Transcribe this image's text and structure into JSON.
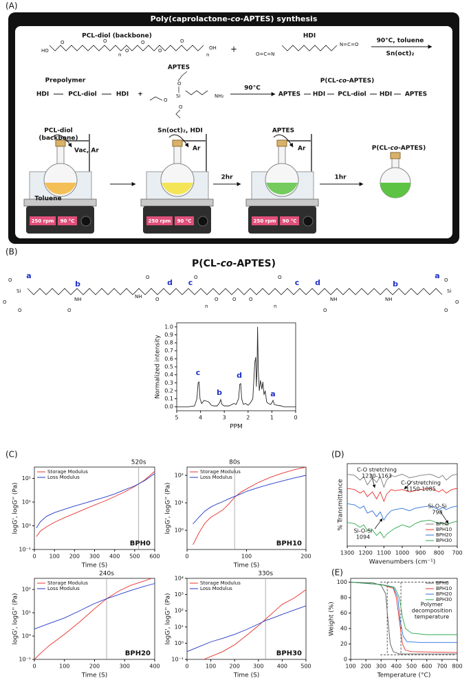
{
  "panel_a": {
    "label": "(A)",
    "title": [
      "Poly(caprolactone-",
      "co",
      "-APTES) synthesis"
    ],
    "pcl_diol": "PCL-diol (backbone)",
    "pcl_atoms": [
      "HO",
      "O",
      "O",
      "n",
      "O",
      "O",
      "O",
      "O",
      "n",
      "OH"
    ],
    "plus": "+",
    "hdi": "HDI",
    "hdi_ends": [
      "O=C=N",
      "N=C=O"
    ],
    "cond1": "90°C, toluene",
    "cat1": "Sn(oct)₂",
    "prepolymer": "Prepolymer",
    "prepoly_formula": [
      "HDI",
      "PCL-diol",
      "HDI",
      "+"
    ],
    "aptes": "APTES",
    "aptes_atoms": [
      "O",
      "Si",
      "O",
      "O",
      "NH₂"
    ],
    "cond2": "90°C",
    "product": [
      "P(CL-",
      "co",
      "-APTES)"
    ],
    "product_formula": [
      "APTES",
      "HDI",
      "PCL-diol",
      "HDI",
      "APTES"
    ],
    "steps": {
      "pcl_label": [
        "PCL-diol",
        "(backbone)"
      ],
      "vac": "Vac, Ar",
      "toluene": "Toluene",
      "reagents": "Sn(oct)₂, HDI",
      "ar": "Ar",
      "t1": "2hr",
      "aptes": "APTES",
      "t2": "1hr",
      "final": [
        "P(CL-",
        "co",
        "-APTES)"
      ]
    },
    "display": {
      "rpm": "250 rpm",
      "temp": "90 °C"
    }
  },
  "panel_b": {
    "label": "(B)",
    "title": [
      "P(CL-",
      "co",
      "-APTES)"
    ],
    "letters": [
      "a",
      "b",
      "d",
      "c",
      "c",
      "d",
      "b",
      "a"
    ],
    "atoms": [
      "Si",
      "O",
      "O",
      "O",
      "NH",
      "O",
      "NH",
      "O",
      "O",
      "O",
      "n",
      "O",
      "O",
      "O",
      "n",
      "O",
      "NH",
      "O",
      "NH",
      "Si",
      "O",
      "O",
      "O"
    ]
  },
  "panel_labels": {
    "c": "(C)",
    "d": "(D)",
    "e": "(E)"
  },
  "chart_data": [
    {
      "type": "line",
      "xlabel": "PPM",
      "ylabel": "Normalized intensity",
      "xlim": [
        5,
        0
      ],
      "ylim": [
        -0.05,
        1.05
      ],
      "xticks": [
        5,
        4,
        3,
        2,
        1,
        0
      ],
      "yticks": [
        {
          "value": 0,
          "label": "0.0"
        },
        0.1,
        0.2,
        0.3,
        0.4,
        0.5,
        0.6,
        0.7,
        0.8,
        0.9,
        {
          "value": 1,
          "label": "1.0"
        }
      ],
      "color": "#222222",
      "annotations": [
        "c",
        "b",
        "d",
        "a"
      ],
      "x": [
        5,
        4.5,
        4.25,
        4.15,
        4.1,
        4.06,
        4.02,
        3.95,
        3.85,
        3.75,
        3.65,
        3.55,
        3.45,
        3.3,
        3.2,
        3.15,
        3.1,
        3.0,
        2.8,
        2.6,
        2.5,
        2.4,
        2.35,
        2.31,
        2.27,
        2.2,
        2.1,
        2.0,
        1.9,
        1.8,
        1.72,
        1.68,
        1.65,
        1.62,
        1.6,
        1.57,
        1.53,
        1.48,
        1.42,
        1.38,
        1.33,
        1.28,
        1.22,
        1.15,
        1.05,
        1.0,
        0.95,
        0.9,
        0.8,
        0.6,
        0.5,
        0.3,
        0
      ],
      "series": [
        {
          "values": [
            0,
            0,
            0.01,
            0.1,
            0.3,
            0.31,
            0.1,
            0.04,
            0.08,
            0.07,
            0.06,
            0.02,
            0.01,
            0.01,
            0.05,
            0.09,
            0.03,
            0.01,
            0.01,
            0.04,
            0.03,
            0.1,
            0.28,
            0.29,
            0.1,
            0.03,
            0.04,
            0.02,
            0.05,
            0.1,
            0.55,
            0.62,
            0.25,
            0.5,
            1.0,
            0.45,
            0.2,
            0.33,
            0.22,
            0.31,
            0.15,
            0.2,
            0.06,
            0.04,
            0.03,
            0.05,
            0.08,
            0.03,
            0.02,
            0.01,
            0,
            0,
            0
          ]
        }
      ]
    },
    {
      "type": "line",
      "title": "520s",
      "label": "BPH0",
      "xlabel": "Time (S)",
      "ylabel": "logG', logG'' (Pa)",
      "yscale": "log",
      "xlim": [
        0,
        600
      ],
      "ylim": [
        0.1,
        300
      ],
      "xticks": [
        0,
        100,
        200,
        300,
        400,
        500,
        600
      ],
      "yticks": [
        {
          "value": 0.1,
          "label": "10⁻¹"
        },
        {
          "value": 1,
          "label": "10⁰"
        },
        {
          "value": 10,
          "label": "10¹"
        },
        {
          "value": 100,
          "label": "10²"
        }
      ],
      "vline": 520,
      "legend": "upper left",
      "series": [
        {
          "name": "Storage Modulus",
          "color": "#e8302a",
          "x": [
            10,
            30,
            60,
            100,
            150,
            200,
            250,
            300,
            350,
            400,
            450,
            500,
            550,
            600
          ],
          "values": [
            0.35,
            0.6,
            0.9,
            1.4,
            2.2,
            3.3,
            5,
            7.5,
            11,
            17,
            27,
            45,
            85,
            200
          ]
        },
        {
          "name": "Loss Modulus",
          "color": "#2236c8",
          "x": [
            10,
            30,
            60,
            100,
            150,
            200,
            250,
            300,
            350,
            400,
            450,
            500,
            550,
            600
          ],
          "values": [
            0.8,
            1.5,
            2.5,
            3.6,
            5,
            6.8,
            9,
            12,
            16,
            22,
            33,
            48,
            80,
            160
          ]
        }
      ]
    },
    {
      "type": "line",
      "title": "80s",
      "label": "BPH10",
      "xlabel": "Time (S)",
      "ylabel": "logG', logG'' (Pa)",
      "yscale": "log",
      "xlim": [
        0,
        200
      ],
      "ylim": [
        0.2,
        200
      ],
      "xticks": [
        0,
        100,
        200
      ],
      "yticks": [
        {
          "value": 1,
          "label": "10⁰"
        },
        {
          "value": 10,
          "label": "10¹"
        },
        {
          "value": 100,
          "label": "10²"
        }
      ],
      "vline": 80,
      "legend": "upper left",
      "series": [
        {
          "name": "Storage Modulus",
          "color": "#e8302a",
          "x": [
            10,
            20,
            30,
            40,
            50,
            60,
            70,
            80,
            90,
            100,
            120,
            140,
            160,
            180,
            200
          ],
          "values": [
            0.3,
            0.8,
            1.8,
            3,
            4,
            5.5,
            9,
            16,
            24,
            32,
            55,
            85,
            120,
            160,
            200
          ]
        },
        {
          "name": "Loss Modulus",
          "color": "#2236c8",
          "x": [
            10,
            20,
            30,
            40,
            50,
            60,
            70,
            80,
            90,
            100,
            120,
            140,
            160,
            180,
            200
          ],
          "values": [
            1.7,
            3,
            5,
            7,
            9,
            11,
            14,
            17,
            21,
            26,
            36,
            48,
            62,
            80,
            100
          ]
        }
      ]
    },
    {
      "type": "line",
      "title": "240s",
      "label": "BPH20",
      "xlabel": "Time (S)",
      "ylabel": "logG', logG'' (Pa)",
      "yscale": "log",
      "xlim": [
        0,
        400
      ],
      "ylim": [
        0.1,
        300
      ],
      "xticks": [
        0,
        100,
        200,
        300,
        400
      ],
      "yticks": [
        {
          "value": 0.1,
          "label": "10⁻¹"
        },
        {
          "value": 1,
          "label": "10⁰"
        },
        {
          "value": 10,
          "label": "10¹"
        },
        {
          "value": 100,
          "label": "10²"
        }
      ],
      "vline": 240,
      "legend": "upper left",
      "series": [
        {
          "name": "Storage Modulus",
          "color": "#e8302a",
          "x": [
            0,
            20,
            50,
            100,
            150,
            200,
            240,
            280,
            320,
            360,
            390
          ],
          "values": [
            0.1,
            0.18,
            0.4,
            1.2,
            4,
            15,
            40,
            85,
            150,
            220,
            300
          ]
        },
        {
          "name": "Loss Modulus",
          "color": "#2236c8",
          "x": [
            0,
            50,
            100,
            150,
            200,
            240,
            280,
            320,
            360,
            400
          ],
          "values": [
            2,
            3.5,
            6,
            12,
            25,
            40,
            60,
            90,
            130,
            180
          ]
        }
      ]
    },
    {
      "type": "line",
      "title": "330s",
      "label": "BPH30",
      "xlabel": "Time (S)",
      "ylabel": "logG', logG'' (Pa)",
      "yscale": "log",
      "xlim": [
        0,
        500
      ],
      "ylim": [
        0.1,
        10000
      ],
      "xticks": [
        0,
        100,
        200,
        300,
        400,
        500
      ],
      "yticks": [
        {
          "value": 0.1,
          "label": "10⁻¹"
        },
        {
          "value": 1,
          "label": "10⁰"
        },
        {
          "value": 10,
          "label": "10¹"
        },
        {
          "value": 100,
          "label": "10²"
        },
        {
          "value": 1000,
          "label": "10³"
        },
        {
          "value": 10000,
          "label": "10⁴"
        }
      ],
      "vline": 330,
      "legend": "upper left",
      "series": [
        {
          "name": "Storage Modulus",
          "color": "#e8302a",
          "x": [
            70,
            100,
            150,
            200,
            250,
            300,
            330,
            370,
            400,
            450,
            500
          ],
          "values": [
            0.1,
            0.15,
            0.3,
            0.8,
            3,
            12,
            30,
            100,
            250,
            600,
            2000
          ]
        },
        {
          "name": "Loss Modulus",
          "color": "#2236c8",
          "x": [
            0,
            50,
            100,
            150,
            200,
            250,
            300,
            330,
            370,
            400,
            450,
            500
          ],
          "values": [
            0.3,
            0.6,
            1.2,
            2,
            3.5,
            7,
            15,
            25,
            40,
            60,
            110,
            200
          ]
        }
      ]
    },
    {
      "type": "line",
      "xlabel": "Wavenumbers (cm⁻¹)",
      "ylabel": "% Transmittance",
      "xlim": [
        1300,
        700
      ],
      "ylim": [
        0.5,
        4
      ],
      "xticks": [
        1300,
        1200,
        1100,
        1000,
        900,
        800,
        700
      ],
      "legend": "lower right",
      "annotations": [
        {
          "lines": [
            "C-O stretching",
            "1210-1163"
          ]
        },
        {
          "lines": [
            "C-O stretching",
            "1150-1085"
          ]
        },
        {
          "lines": [
            "Si-O-Si",
            "798"
          ]
        },
        {
          "lines": [
            "Si-O-Si",
            "1094"
          ]
        }
      ],
      "x": [
        1300,
        1260,
        1230,
        1210,
        1190,
        1163,
        1140,
        1120,
        1100,
        1085,
        1060,
        1040,
        1000,
        960,
        930,
        900,
        850,
        830,
        800,
        780,
        760,
        730,
        700
      ],
      "series": [
        {
          "name": "BPH0",
          "color": "#7a7a7a",
          "values": [
            3.55,
            3.5,
            3.3,
            3.45,
            3.1,
            3.4,
            3.2,
            3.45,
            3.0,
            3.3,
            3.5,
            3.45,
            3.55,
            3.4,
            3.45,
            3.5,
            3.55,
            3.5,
            3.4,
            3.5,
            3.3,
            3.5,
            3.55
          ]
        },
        {
          "name": "BPH10",
          "color": "#e8302a",
          "values": [
            2.95,
            2.9,
            2.75,
            2.85,
            2.6,
            2.8,
            2.5,
            2.8,
            2.4,
            2.7,
            2.9,
            2.85,
            2.9,
            2.8,
            2.85,
            2.9,
            2.95,
            2.9,
            2.8,
            2.9,
            2.75,
            2.9,
            2.95
          ]
        },
        {
          "name": "BPH20",
          "color": "#2a6fd8",
          "values": [
            2.3,
            2.25,
            2.1,
            2.2,
            1.9,
            2.0,
            1.75,
            1.95,
            1.6,
            1.8,
            2.0,
            2.05,
            2.1,
            2.0,
            2.1,
            2.15,
            2.2,
            2.15,
            2.05,
            2.15,
            2.05,
            2.15,
            2.2
          ]
        },
        {
          "name": "BPH30",
          "color": "#2ea84a",
          "values": [
            1.5,
            1.45,
            1.3,
            1.4,
            1.15,
            1.2,
            0.95,
            1.1,
            0.85,
            1.0,
            1.15,
            1.25,
            1.4,
            1.3,
            1.45,
            1.55,
            1.6,
            1.55,
            1.45,
            1.5,
            1.4,
            1.5,
            1.55
          ]
        }
      ]
    },
    {
      "type": "line",
      "xlabel": "Temperature (°C)",
      "ylabel": "Weight (%)",
      "xlim": [
        100,
        800
      ],
      "ylim": [
        0,
        105
      ],
      "xticks": [
        100,
        200,
        300,
        400,
        500,
        600,
        700,
        800
      ],
      "yticks": [
        0,
        20,
        40,
        60,
        80,
        100
      ],
      "legend": "upper right",
      "xlines": [
        340,
        430
      ],
      "hlines": [
        100,
        6
      ],
      "annotations": [
        {
          "lines": [
            "Polymer",
            "decomposition",
            "temperature"
          ]
        }
      ],
      "series": [
        {
          "name": "BPH0",
          "color": "#555555",
          "x": [
            100,
            250,
            300,
            330,
            345,
            360,
            380,
            420,
            800
          ],
          "values": [
            100,
            99,
            96,
            85,
            50,
            20,
            10,
            7,
            7
          ]
        },
        {
          "name": "BPH10",
          "color": "#e8302a",
          "x": [
            100,
            300,
            380,
            400,
            420,
            440,
            460,
            500,
            800
          ],
          "values": [
            100,
            97,
            92,
            80,
            50,
            20,
            12,
            10,
            9
          ]
        },
        {
          "name": "BPH20",
          "color": "#2a6fd8",
          "x": [
            100,
            300,
            380,
            410,
            425,
            445,
            470,
            550,
            800
          ],
          "values": [
            100,
            97,
            94,
            80,
            50,
            30,
            23,
            22,
            22
          ]
        },
        {
          "name": "BPH30",
          "color": "#2ea84a",
          "x": [
            100,
            300,
            390,
            420,
            440,
            460,
            500,
            600,
            800
          ],
          "values": [
            100,
            97,
            93,
            80,
            55,
            40,
            34,
            32,
            32
          ]
        }
      ]
    }
  ]
}
